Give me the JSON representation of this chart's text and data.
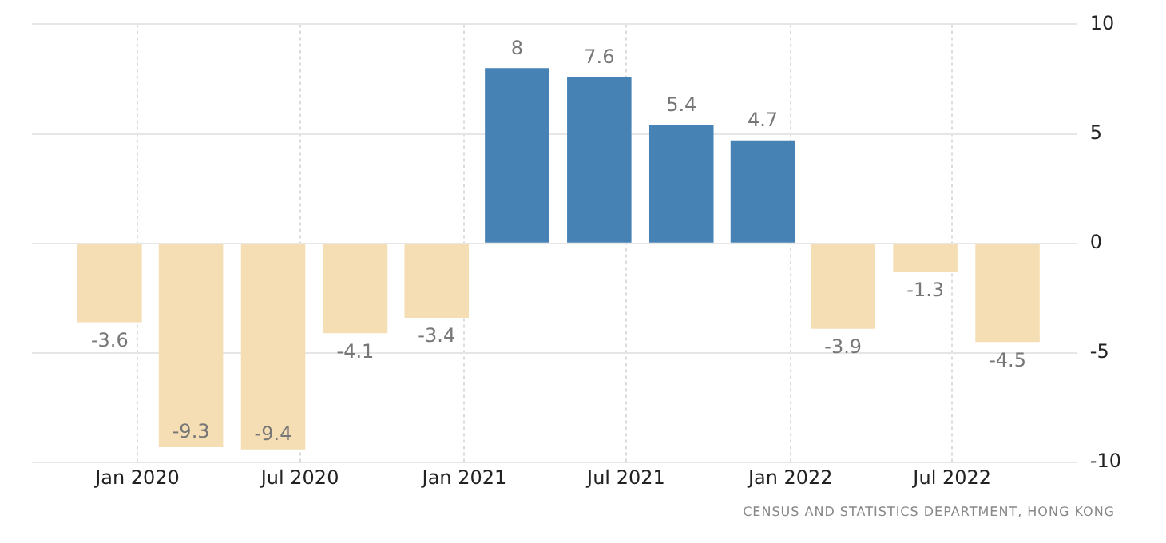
{
  "chart_data": {
    "type": "bar",
    "x": [
      "2019-12-01",
      "2020-03-01",
      "2020-06-01",
      "2020-09-01",
      "2020-12-01",
      "2021-03-01",
      "2021-06-01",
      "2021-09-01",
      "2021-12-01",
      "2022-03-01",
      "2022-06-01",
      "2022-09-01"
    ],
    "values": [
      -3.6,
      -9.3,
      -9.4,
      -4.1,
      -3.4,
      8,
      7.6,
      5.4,
      4.7,
      -3.9,
      -1.3,
      -4.5
    ],
    "colors": [
      "#f5deb3",
      "#f5deb3",
      "#f5deb3",
      "#f5deb3",
      "#f5deb3",
      "#4682b4",
      "#4682b4",
      "#4682b4",
      "#4682b4",
      "#f5deb3",
      "#f5deb3",
      "#f5deb3"
    ],
    "data_labels": true,
    "xlim": [
      "2019-09-05",
      "2022-11-18"
    ],
    "xticks": [
      {
        "value": "2020-01",
        "label": "Jan 2020"
      },
      {
        "value": "2020-07",
        "label": "Jul 2020"
      },
      {
        "value": "2021-01",
        "label": "Jan 2021"
      },
      {
        "value": "2021-07",
        "label": "Jul 2021"
      },
      {
        "value": "2022-01",
        "label": "Jan 2022"
      },
      {
        "value": "2022-07",
        "label": "Jul 2022"
      }
    ],
    "ylim": [
      -10,
      10
    ],
    "yticks": [
      -10,
      -5,
      0,
      5,
      10
    ],
    "grid": true,
    "legend": false,
    "annotations": [
      "CENSUS AND STATISTICS DEPARTMENT, HONG KONG"
    ]
  }
}
